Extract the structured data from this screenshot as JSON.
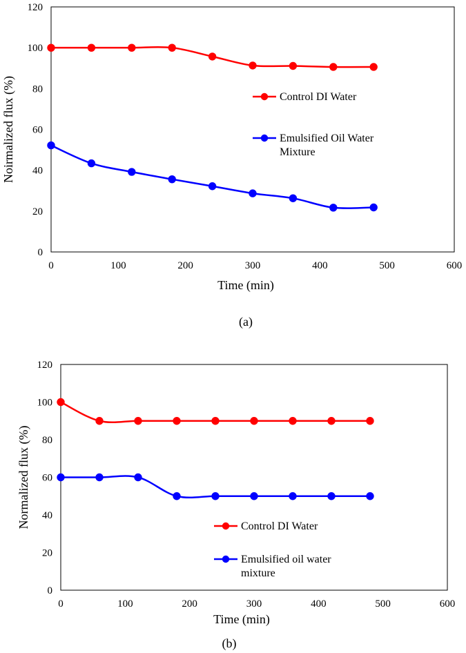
{
  "chart_data": [
    {
      "type": "line",
      "panel_label": "(a)",
      "xlabel": "Time (min)",
      "ylabel": "Noirmalized flux (%)",
      "xlim": [
        0,
        600
      ],
      "ylim": [
        0,
        120
      ],
      "xticks": [
        "0",
        "100",
        "200",
        "300",
        "400",
        "500",
        "600"
      ],
      "yticks": [
        "0",
        "20",
        "40",
        "60",
        "80",
        "100",
        "120"
      ],
      "series": [
        {
          "name": "Control DI Water",
          "name_lines": [
            "Control DI Water"
          ],
          "color": "#ff0000",
          "x": [
            0,
            60,
            120,
            180,
            240,
            300,
            360,
            420,
            480
          ],
          "y": [
            100,
            100,
            100,
            100,
            95.7,
            91.3,
            91.1,
            90.6,
            90.6
          ]
        },
        {
          "name": "Emulsified Oil Water Mixture",
          "name_lines": [
            "Emulsified Oil Water",
            "Mixture"
          ],
          "color": "#0000ff",
          "x": [
            0,
            60,
            120,
            180,
            240,
            300,
            360,
            420,
            480
          ],
          "y": [
            52.2,
            43.4,
            39.2,
            35.6,
            32.2,
            28.7,
            26.3,
            21.7,
            21.8
          ]
        }
      ],
      "legend_position": "center-right",
      "grid": false
    },
    {
      "type": "line",
      "panel_label": "(b)",
      "xlabel": "Time (min)",
      "ylabel": "Normalized flux (%)",
      "xlim": [
        0,
        600
      ],
      "ylim": [
        0,
        120
      ],
      "xticks": [
        "0",
        "100",
        "200",
        "300",
        "400",
        "500",
        "600"
      ],
      "yticks": [
        "0",
        "20",
        "40",
        "60",
        "80",
        "100",
        "120"
      ],
      "series": [
        {
          "name": "Control DI Water",
          "name_lines": [
            "Control DI Water"
          ],
          "color": "#ff0000",
          "x": [
            0,
            60,
            120,
            180,
            240,
            300,
            360,
            420,
            480
          ],
          "y": [
            100,
            90,
            90,
            90,
            90,
            90,
            90,
            90,
            90
          ]
        },
        {
          "name": "Emulsified oil water mixture",
          "name_lines": [
            "Emulsified oil water",
            "mixture"
          ],
          "color": "#0000ff",
          "x": [
            0,
            60,
            120,
            180,
            240,
            300,
            360,
            420,
            480
          ],
          "y": [
            60,
            60,
            60,
            50,
            50,
            50,
            50,
            50,
            50
          ]
        }
      ],
      "legend_position": "lower-center",
      "grid": false
    }
  ]
}
